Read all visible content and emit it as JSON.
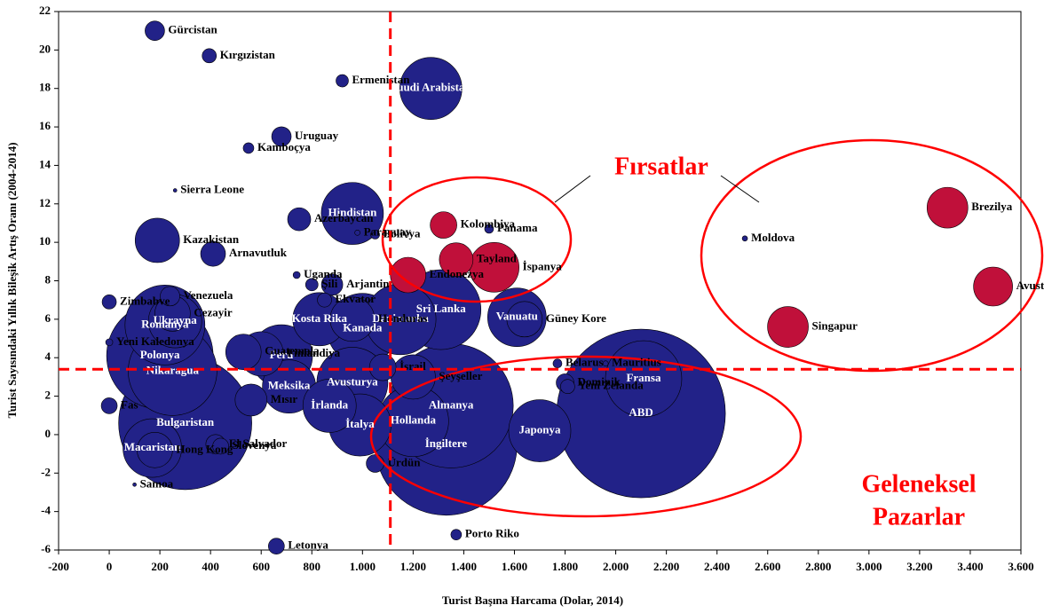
{
  "chart_data": {
    "type": "bubble",
    "x_label": "Turist  Başına Harcama (Dolar, 2014)",
    "y_label": "Turist  Sayısındaki Yıllık  Bileşik Artış Oranı (2004-2014)",
    "annotations": [
      "Fırsatlar",
      "Geleneksel",
      "Pazarlar"
    ],
    "xlim": [
      -200,
      3600
    ],
    "xticks": [
      -200,
      0,
      200,
      400,
      600,
      800,
      {
        "value": 1000,
        "label": "1.000"
      },
      {
        "value": 1200,
        "label": "1.200"
      },
      {
        "value": 1400,
        "label": "1.400"
      },
      {
        "value": 1600,
        "label": "1.600"
      },
      {
        "value": 1800,
        "label": "1.800"
      },
      {
        "value": 2000,
        "label": "2.000"
      },
      {
        "value": 2200,
        "label": "2.200"
      },
      {
        "value": 2400,
        "label": "2.400"
      },
      {
        "value": 2600,
        "label": "2.600"
      },
      {
        "value": 2800,
        "label": "2.800"
      },
      {
        "value": 3000,
        "label": "3.000"
      },
      {
        "value": 3200,
        "label": "3.200"
      },
      {
        "value": 3400,
        "label": "3.400"
      },
      {
        "value": 3600,
        "label": "3.600"
      }
    ],
    "ylim": [
      -6,
      22
    ],
    "yticks": [
      -6,
      -4,
      -2,
      0,
      2,
      4,
      6,
      8,
      10,
      12,
      14,
      16,
      18,
      20,
      22
    ],
    "ref_x": 1110,
    "ref_y": 3.4,
    "ref_color": "#ff0000",
    "labels": [
      "Gürcistan",
      "Kırgızistan",
      "Ermenistan",
      "Suudi Arabistan",
      "Uruguay",
      "Kamboçya",
      "Sierra Leone",
      "Hindistan",
      "Kazakistan",
      "Azerbaycan",
      "Paraguay",
      "Bolivya",
      "Arnavutluk",
      "Uganda",
      "Şili",
      "Arjantin",
      "Zimbabve",
      "Venezuela",
      "Cezayir",
      "Ukrayna",
      "Romanya",
      "Polonya",
      "Yeni Kaledonya",
      "Nikaragua",
      "Fas",
      "Bulgaristan",
      "Macaristan",
      "Hong Kong",
      "Samoa",
      "El Salvador",
      "Slovenya",
      "Mısır",
      "Guatemala",
      "Finlandiya",
      "Peru",
      "Meksika",
      "Kosta Rika",
      "Honduras",
      "Ekvator",
      "Kanada",
      "Danimarka",
      "Sri Lanka",
      "İrlanda",
      "Avusturya",
      "İtalya",
      "İsrail",
      "Ürdün",
      "Şeyşeller",
      "Almanya",
      "İngiltere",
      "Hollanda",
      "Japonya",
      "Vanuatu",
      "Güney Kore",
      "Belarus",
      "Dominik",
      "Yeni Zelanda",
      "Mauritius",
      "Fransa",
      "ABD",
      "Porto Riko",
      "Letonya",
      "Endonezya",
      "Kolombiya",
      "Tayland",
      "İspanya",
      "Panama",
      "Moldova",
      "Brezilya",
      "Avustralya",
      "Singapur"
    ],
    "x": [
      180,
      395,
      920,
      1270,
      680,
      550,
      260,
      960,
      190,
      750,
      980,
      1050,
      410,
      740,
      800,
      880,
      0,
      240,
      250,
      260,
      220,
      200,
      0,
      250,
      0,
      300,
      170,
      180,
      100,
      420,
      440,
      560,
      530,
      600,
      680,
      710,
      830,
      960,
      850,
      1000,
      1150,
      1310,
      870,
      960,
      990,
      1080,
      1050,
      1200,
      1350,
      1330,
      1200,
      1700,
      1610,
      1640,
      1770,
      1800,
      1810,
      1960,
      2110,
      2100,
      1370,
      660,
      1180,
      1320,
      1370,
      1520,
      1500,
      2510,
      3310,
      3490,
      2680
    ],
    "y": [
      21,
      19.7,
      18.4,
      18,
      15.5,
      14.9,
      12.7,
      11.5,
      10.1,
      11.2,
      10.5,
      10.4,
      9.4,
      8.3,
      7.8,
      7.8,
      6.9,
      7.2,
      6.3,
      5.9,
      5.7,
      4.1,
      4.8,
      3.3,
      1.5,
      0.6,
      -0.7,
      -0.8,
      -2.6,
      -0.5,
      -0.6,
      1.8,
      4.3,
      4.2,
      4.1,
      2.5,
      6,
      6,
      7,
      5.5,
      6,
      6.5,
      1.5,
      2.7,
      0.5,
      3.5,
      -1.5,
      3,
      1.5,
      -0.5,
      0.7,
      0.2,
      6.1,
      6,
      3.7,
      2.7,
      2.5,
      3.7,
      2.9,
      1.1,
      -5.2,
      -5.8,
      8.3,
      10.9,
      9.1,
      8.7,
      10.7,
      10.2,
      11.8,
      7.7,
      5.6
    ],
    "sizes": [
      11,
      8,
      7,
      35,
      11,
      6,
      2,
      35,
      25,
      13,
      3,
      5,
      14,
      4,
      7,
      12,
      8,
      11,
      20,
      30,
      45,
      60,
      4,
      50,
      9,
      75,
      33,
      20,
      2,
      11,
      9,
      18,
      20,
      25,
      35,
      30,
      30,
      25,
      8,
      40,
      40,
      45,
      30,
      40,
      35,
      15,
      10,
      25,
      70,
      80,
      40,
      35,
      33,
      20,
      5,
      10,
      8,
      3,
      43,
      95,
      6,
      9,
      20,
      15,
      19,
      28,
      5,
      3,
      23,
      22,
      23
    ],
    "colors": [
      "#222288",
      "#222288",
      "#222288",
      "#222288",
      "#222288",
      "#222288",
      "#222288",
      "#222288",
      "#222288",
      "#222288",
      "#222288",
      "#222288",
      "#222288",
      "#222288",
      "#222288",
      "#222288",
      "#222288",
      "#222288",
      "#222288",
      "#222288",
      "#222288",
      "#222288",
      "#222288",
      "#222288",
      "#222288",
      "#222288",
      "#222288",
      "#222288",
      "#222288",
      "#222288",
      "#222288",
      "#222288",
      "#222288",
      "#222288",
      "#222288",
      "#222288",
      "#222288",
      "#222288",
      "#222288",
      "#222288",
      "#222288",
      "#222288",
      "#222288",
      "#222288",
      "#222288",
      "#222288",
      "#222288",
      "#222288",
      "#222288",
      "#222288",
      "#222288",
      "#222288",
      "#222288",
      "#222288",
      "#222288",
      "#222288",
      "#222288",
      "#222288",
      "#222288",
      "#222288",
      "#222288",
      "#222288",
      "#c0103a",
      "#c0103a",
      "#c0103a",
      "#c0103a",
      "#222288",
      "#222288",
      "#c0103a",
      "#c0103a",
      "#c0103a"
    ]
  }
}
